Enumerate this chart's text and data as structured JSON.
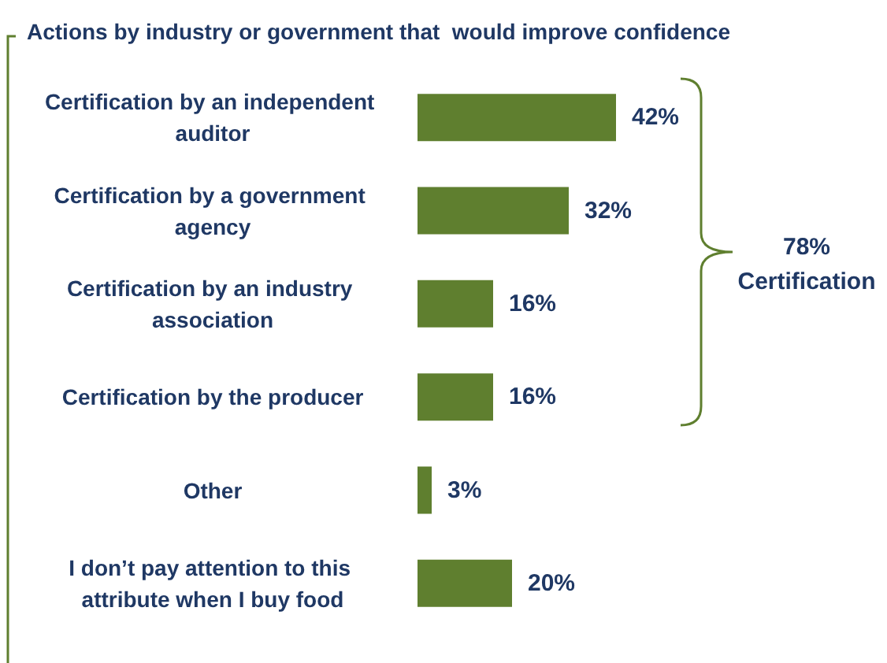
{
  "chart_data": {
    "type": "bar",
    "orientation": "horizontal",
    "title": "Actions by industry or government that  would improve confidence",
    "categories": [
      "Certification by an independent auditor",
      "Certification by a government agency",
      "Certification by an industry association",
      "Certification by the producer",
      "Other",
      "I don’t pay attention to this attribute when I buy food"
    ],
    "values": [
      42,
      32,
      16,
      16,
      3,
      20
    ],
    "value_labels": [
      "42%",
      "32%",
      "16%",
      "16%",
      "3%",
      "20%"
    ],
    "color": "#5f7f2f",
    "annotations": [
      "78% Certification"
    ]
  }
}
